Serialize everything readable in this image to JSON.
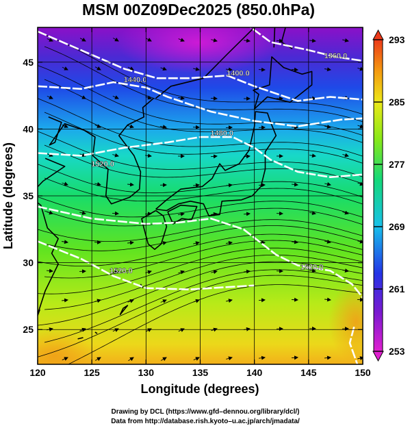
{
  "title": "MSM 00Z09Dec2025 (850.0hPa)",
  "x_axis": {
    "label": "Longitude (degrees)",
    "range": [
      120,
      150
    ],
    "ticks": [
      "120",
      "125",
      "130",
      "135",
      "140",
      "145",
      "150"
    ]
  },
  "y_axis": {
    "label": "Latitude  (degrees)",
    "range": [
      22.4,
      47.6
    ],
    "ticks": [
      "25",
      "30",
      "35",
      "40",
      "45"
    ]
  },
  "colorbar": {
    "range": [
      253,
      293
    ],
    "ticks": [
      "253",
      "261",
      "269",
      "277",
      "285",
      "293"
    ],
    "colors": [
      "#e020d0",
      "#7a1ad0",
      "#2434e6",
      "#18c0ea",
      "#14d87a",
      "#88e818",
      "#ece818",
      "#f49a10",
      "#ec3a1a"
    ]
  },
  "contours": [
    {
      "label": "1360.0",
      "lon": 147.5,
      "lat": 45.3
    },
    {
      "label": "1400.0",
      "lon": 138.5,
      "lat": 44.0
    },
    {
      "label": "1440.0",
      "lon": 129.0,
      "lat": 43.5
    },
    {
      "label": "1480.0",
      "lon": 137.0,
      "lat": 39.5
    },
    {
      "label": "1520.0",
      "lon": 126.0,
      "lat": 37.2
    },
    {
      "label": "1520.0",
      "lon": 145.3,
      "lat": 29.5
    },
    {
      "label": "1520.0",
      "lon": 127.7,
      "lat": 29.2
    }
  ],
  "credits": {
    "line1": "Drawing by DCL (https://www.gfd–dennou.org/library/dcl/)",
    "line2": "Data from http://database.rish.kyoto–u.ac.jp/arch/jmadata/"
  },
  "colors": {
    "contour": "#ffffff",
    "streamline": "#000000",
    "coast": "#000000",
    "grid": "#000000"
  }
}
